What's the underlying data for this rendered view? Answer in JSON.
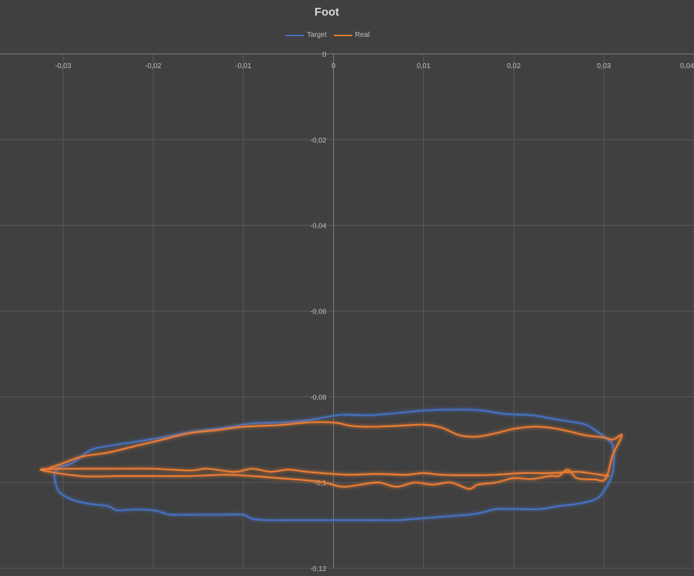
{
  "chart_data": {
    "type": "scatter",
    "title": "Foot",
    "xlabel": "",
    "ylabel": "",
    "xlim": [
      -0.037,
      0.04
    ],
    "ylim": [
      -0.12,
      0
    ],
    "x_ticks": [
      "-0,03",
      "-0,02",
      "-0,01",
      "0",
      "0,01",
      "0,02",
      "0,03",
      "0,04"
    ],
    "x_tick_values": [
      -0.03,
      -0.02,
      -0.01,
      0,
      0.01,
      0.02,
      0.03,
      0.04
    ],
    "y_ticks": [
      "0",
      "-0,02",
      "-0,04",
      "-0,06",
      "-0,08",
      "-0,1",
      "-0,12"
    ],
    "y_tick_values": [
      0,
      -0.02,
      -0.04,
      -0.06,
      -0.08,
      -0.1,
      -0.12
    ],
    "grid": true,
    "legend_position": "top",
    "series": [
      {
        "name": "Target",
        "color": "#4472c4",
        "points": [
          [
            -0.031,
            -0.0985
          ],
          [
            -0.0305,
            -0.0965
          ],
          [
            -0.029,
            -0.0955
          ],
          [
            -0.027,
            -0.0925
          ],
          [
            -0.025,
            -0.0915
          ],
          [
            -0.022,
            -0.0905
          ],
          [
            -0.019,
            -0.0895
          ],
          [
            -0.016,
            -0.0883
          ],
          [
            -0.012,
            -0.0872
          ],
          [
            -0.009,
            -0.0862
          ],
          [
            -0.006,
            -0.086
          ],
          [
            -0.003,
            -0.0855
          ],
          [
            -0.001,
            -0.0848
          ],
          [
            0.001,
            -0.0842
          ],
          [
            0.004,
            -0.0843
          ],
          [
            0.007,
            -0.0838
          ],
          [
            0.01,
            -0.0832
          ],
          [
            0.013,
            -0.083
          ],
          [
            0.016,
            -0.0831
          ],
          [
            0.019,
            -0.084
          ],
          [
            0.022,
            -0.0843
          ],
          [
            0.024,
            -0.085
          ],
          [
            0.026,
            -0.0857
          ],
          [
            0.028,
            -0.0865
          ],
          [
            0.0295,
            -0.0885
          ],
          [
            0.03,
            -0.0893
          ],
          [
            0.031,
            -0.0915
          ],
          [
            0.031,
            -0.0975
          ],
          [
            0.03,
            -0.102
          ],
          [
            0.029,
            -0.104
          ],
          [
            0.027,
            -0.105
          ],
          [
            0.025,
            -0.1055
          ],
          [
            0.023,
            -0.1062
          ],
          [
            0.02,
            -0.1062
          ],
          [
            0.018,
            -0.1062
          ],
          [
            0.0165,
            -0.107
          ],
          [
            0.015,
            -0.1075
          ],
          [
            0.012,
            -0.108
          ],
          [
            0.009,
            -0.1085
          ],
          [
            0.007,
            -0.1088
          ],
          [
            0.003,
            -0.1088
          ],
          [
            0.0,
            -0.1088
          ],
          [
            -0.004,
            -0.1088
          ],
          [
            -0.007,
            -0.1088
          ],
          [
            -0.009,
            -0.1085
          ],
          [
            -0.01,
            -0.1075
          ],
          [
            -0.012,
            -0.1075
          ],
          [
            -0.015,
            -0.1075
          ],
          [
            -0.018,
            -0.1075
          ],
          [
            -0.019,
            -0.107
          ],
          [
            -0.02,
            -0.1065
          ],
          [
            -0.022,
            -0.1063
          ],
          [
            -0.024,
            -0.1065
          ],
          [
            -0.025,
            -0.1055
          ],
          [
            -0.027,
            -0.105
          ],
          [
            -0.029,
            -0.104
          ],
          [
            -0.0305,
            -0.102
          ],
          [
            -0.031,
            -0.0985
          ]
        ]
      },
      {
        "name": "Real",
        "color": "#ed7d31",
        "points": [
          [
            -0.032,
            -0.097
          ],
          [
            -0.03,
            -0.0955
          ],
          [
            -0.028,
            -0.094
          ],
          [
            -0.025,
            -0.093
          ],
          [
            -0.022,
            -0.0915
          ],
          [
            -0.019,
            -0.09
          ],
          [
            -0.016,
            -0.0885
          ],
          [
            -0.013,
            -0.0878
          ],
          [
            -0.01,
            -0.087
          ],
          [
            -0.006,
            -0.0866
          ],
          [
            -0.003,
            -0.086
          ],
          [
            0.0,
            -0.086
          ],
          [
            0.002,
            -0.0868
          ],
          [
            0.004,
            -0.087
          ],
          [
            0.007,
            -0.0868
          ],
          [
            0.01,
            -0.0865
          ],
          [
            0.012,
            -0.0872
          ],
          [
            0.014,
            -0.089
          ],
          [
            0.016,
            -0.0893
          ],
          [
            0.018,
            -0.0885
          ],
          [
            0.02,
            -0.0875
          ],
          [
            0.022,
            -0.087
          ],
          [
            0.024,
            -0.0872
          ],
          [
            0.026,
            -0.088
          ],
          [
            0.028,
            -0.089
          ],
          [
            0.03,
            -0.0895
          ],
          [
            0.031,
            -0.09
          ],
          [
            0.032,
            -0.089
          ],
          [
            0.031,
            -0.0935
          ],
          [
            0.0305,
            -0.0975
          ],
          [
            0.03,
            -0.0995
          ],
          [
            0.029,
            -0.0993
          ],
          [
            0.027,
            -0.099
          ],
          [
            0.026,
            -0.097
          ],
          [
            0.025,
            -0.0985
          ],
          [
            0.024,
            -0.0985
          ],
          [
            0.022,
            -0.0992
          ],
          [
            0.02,
            -0.099
          ],
          [
            0.018,
            -0.1
          ],
          [
            0.016,
            -0.1005
          ],
          [
            0.015,
            -0.1015
          ],
          [
            0.013,
            -0.1
          ],
          [
            0.011,
            -0.1005
          ],
          [
            0.009,
            -0.1
          ],
          [
            0.007,
            -0.101
          ],
          [
            0.005,
            -0.1
          ],
          [
            0.003,
            -0.1005
          ],
          [
            0.001,
            -0.101
          ],
          [
            -0.001,
            -0.1
          ],
          [
            -0.003,
            -0.0995
          ],
          [
            -0.006,
            -0.099
          ],
          [
            -0.009,
            -0.0985
          ],
          [
            -0.012,
            -0.0982
          ],
          [
            -0.016,
            -0.0985
          ],
          [
            -0.02,
            -0.0985
          ],
          [
            -0.024,
            -0.0985
          ],
          [
            -0.028,
            -0.0985
          ],
          [
            -0.0325,
            -0.097
          ],
          [
            -0.028,
            -0.0968
          ],
          [
            -0.024,
            -0.0968
          ],
          [
            -0.02,
            -0.0968
          ],
          [
            -0.016,
            -0.0972
          ],
          [
            -0.014,
            -0.0968
          ],
          [
            -0.011,
            -0.0975
          ],
          [
            -0.009,
            -0.0968
          ],
          [
            -0.007,
            -0.0975
          ],
          [
            -0.005,
            -0.097
          ],
          [
            -0.003,
            -0.0975
          ],
          [
            0.0,
            -0.098
          ],
          [
            0.002,
            -0.0982
          ],
          [
            0.005,
            -0.098
          ],
          [
            0.008,
            -0.0982
          ],
          [
            0.01,
            -0.0978
          ],
          [
            0.012,
            -0.0982
          ],
          [
            0.015,
            -0.0983
          ],
          [
            0.018,
            -0.0982
          ],
          [
            0.021,
            -0.0978
          ],
          [
            0.024,
            -0.0978
          ],
          [
            0.027,
            -0.0975
          ],
          [
            0.029,
            -0.098
          ],
          [
            0.0305,
            -0.0985
          ]
        ]
      }
    ]
  }
}
